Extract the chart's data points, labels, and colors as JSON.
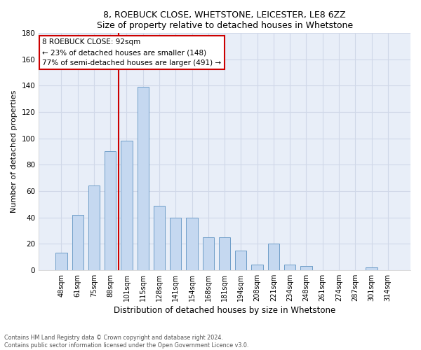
{
  "title1": "8, ROEBUCK CLOSE, WHETSTONE, LEICESTER, LE8 6ZZ",
  "title2": "Size of property relative to detached houses in Whetstone",
  "xlabel": "Distribution of detached houses by size in Whetstone",
  "ylabel": "Number of detached properties",
  "categories": [
    "48sqm",
    "61sqm",
    "75sqm",
    "88sqm",
    "101sqm",
    "115sqm",
    "128sqm",
    "141sqm",
    "154sqm",
    "168sqm",
    "181sqm",
    "194sqm",
    "208sqm",
    "221sqm",
    "234sqm",
    "248sqm",
    "261sqm",
    "274sqm",
    "287sqm",
    "301sqm",
    "314sqm"
  ],
  "values": [
    13,
    42,
    64,
    90,
    98,
    139,
    49,
    40,
    40,
    25,
    25,
    15,
    4,
    20,
    4,
    3,
    0,
    0,
    0,
    2,
    0
  ],
  "bar_color": "#c5d8f0",
  "bar_edge_color": "#6e9dc8",
  "vline_x_index": 3.5,
  "annotation_line1": "8 ROEBUCK CLOSE: 92sqm",
  "annotation_line2": "← 23% of detached houses are smaller (148)",
  "annotation_line3": "77% of semi-detached houses are larger (491) →",
  "annotation_box_facecolor": "#ffffff",
  "annotation_box_edgecolor": "#cc0000",
  "vline_color": "#cc0000",
  "ylim": [
    0,
    180
  ],
  "yticks": [
    0,
    20,
    40,
    60,
    80,
    100,
    120,
    140,
    160,
    180
  ],
  "grid_color": "#d0d8e8",
  "bg_color": "#e8eef8",
  "footer1": "Contains HM Land Registry data © Crown copyright and database right 2024.",
  "footer2": "Contains public sector information licensed under the Open Government Licence v3.0.",
  "bar_width": 0.7
}
